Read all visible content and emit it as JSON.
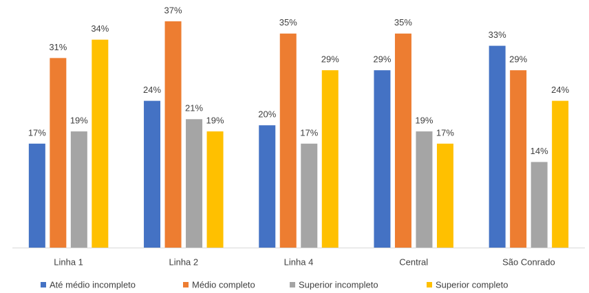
{
  "chart_data": {
    "type": "bar",
    "categories": [
      "Linha 1",
      "Linha 2",
      "Linha 4",
      "Central",
      "São Conrado"
    ],
    "series": [
      {
        "name": "Até médio incompleto",
        "color": "#4472c4",
        "values": [
          17,
          24,
          20,
          29,
          33
        ],
        "value_labels": [
          "17%",
          "24%",
          "20%",
          "29%",
          "33%"
        ]
      },
      {
        "name": "Médio completo",
        "color": "#ed7d31",
        "values": [
          31,
          37,
          35,
          35,
          29
        ],
        "value_labels": [
          "31%",
          "37%",
          "35%",
          "35%",
          "29%"
        ]
      },
      {
        "name": "Superior incompleto",
        "color": "#a5a5a5",
        "values": [
          19,
          21,
          17,
          19,
          14
        ],
        "value_labels": [
          "19%",
          "21%",
          "17%",
          "19%",
          "14%"
        ]
      },
      {
        "name": "Superior completo",
        "color": "#ffc000",
        "values": [
          34,
          19,
          29,
          17,
          24
        ],
        "value_labels": [
          "34%",
          "19%",
          "29%",
          "17%",
          "24%"
        ]
      }
    ],
    "legend": "bottom"
  }
}
